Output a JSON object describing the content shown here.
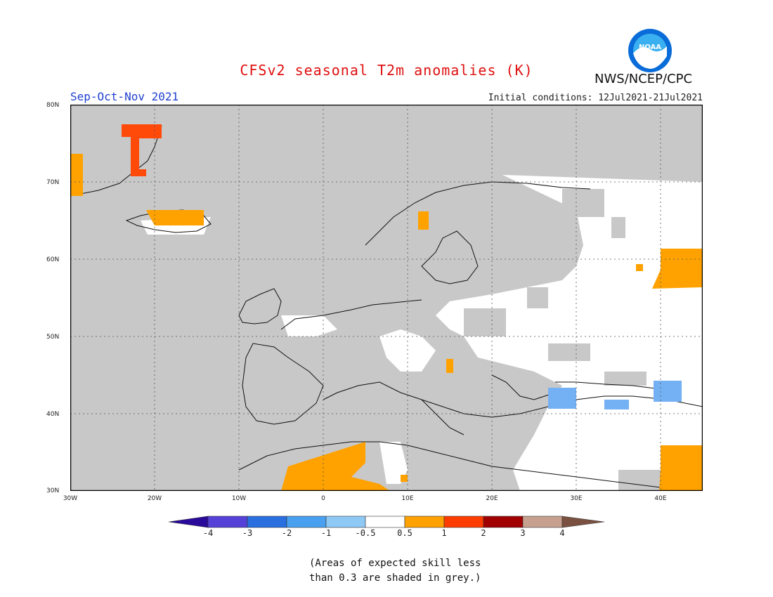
{
  "title": "CFSv2 seasonal T2m anomalies (K)",
  "season": "Sep-Oct-Nov 2021",
  "initial_conditions": "Initial conditions: 12Jul2021-21Jul2021",
  "agency": "NWS/NCEP/CPC",
  "logo_text": "NOAA",
  "lat_labels": [
    "80N",
    "70N",
    "60N",
    "50N",
    "40N",
    "30N"
  ],
  "lon_labels": [
    "30W",
    "20W",
    "10W",
    "0",
    "10E",
    "20E",
    "30E",
    "40E"
  ],
  "colorbar": {
    "labels": [
      "-4",
      "-3",
      "-2",
      "-1",
      "-0.5",
      "0.5",
      "1",
      "2",
      "3",
      "4"
    ],
    "colors": [
      "#2a0a9a",
      "#5540d8",
      "#2a6fe0",
      "#4aa0f0",
      "#8ec8f5",
      "#ffffff",
      "#ffa200",
      "#ff3c00",
      "#a00000",
      "#c8a090",
      "#7a5040"
    ]
  },
  "note_line1": "(Areas of expected skill less",
  "note_line2": "than 0.3 are shaded in grey.)",
  "colors": {
    "grey": "#c8c8c8",
    "orange": "#ffa200",
    "red": "#ff4a0a",
    "blue": "#74b0f4"
  }
}
